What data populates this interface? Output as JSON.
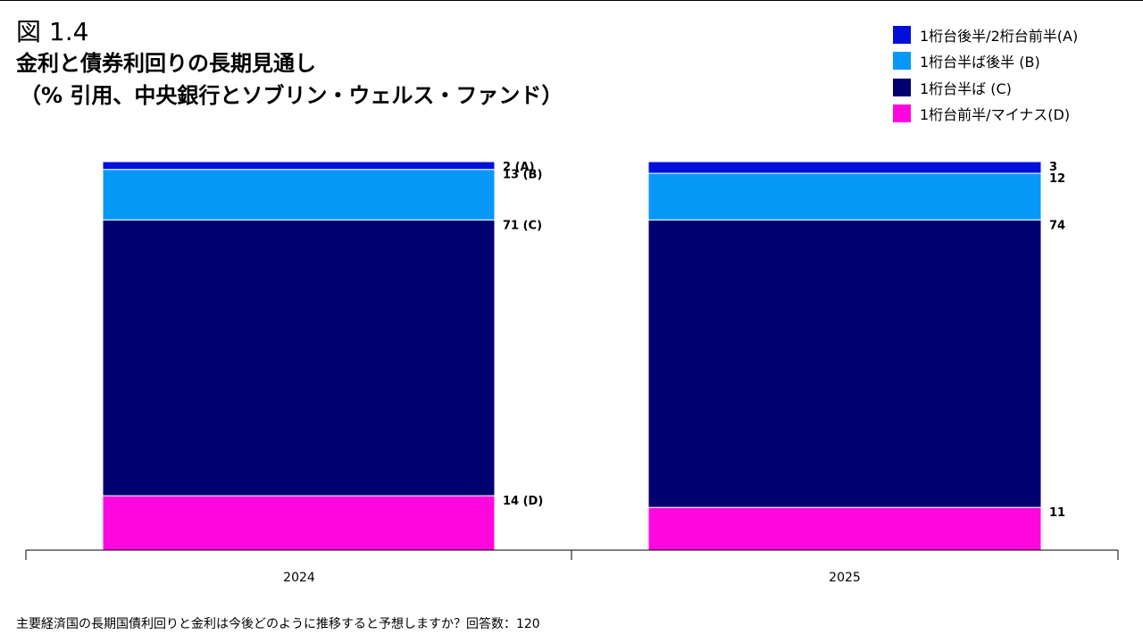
{
  "figure_label": "図 1.4",
  "title": "金利と債券利回りの長期見通し",
  "subtitle": "（% 引用、中央銀行とソブリン・ウェルス・ファンド）",
  "footnote": "主要経済国の長期国債利回りと金利は今後どのように推移すると予想しますか？回答数：120",
  "colors": {
    "A": "#0010d8",
    "B": "#0898f8",
    "C": "#000070",
    "D": "#ff08e0"
  },
  "chart_data": {
    "type": "bar",
    "stacked": true,
    "categories": [
      "2024",
      "2025"
    ],
    "ylim": [
      0,
      100
    ],
    "series": [
      {
        "key": "D",
        "name": "1桁台前半/マイナス(D)",
        "values": [
          14,
          11
        ],
        "labels": [
          "14 (D)",
          "11"
        ]
      },
      {
        "key": "C",
        "name": "1桁台半ば (C)",
        "values": [
          71,
          74
        ],
        "labels": [
          "71 (C)",
          "74"
        ]
      },
      {
        "key": "B",
        "name": "1桁台半ば後半 (B)",
        "values": [
          13,
          12
        ],
        "labels": [
          "13 (B)",
          "12"
        ]
      },
      {
        "key": "A",
        "name": "1桁台後半/2桁台前半(A)",
        "values": [
          2,
          3
        ],
        "labels": [
          "2 (A)",
          "3"
        ]
      }
    ],
    "legend_order": [
      "A",
      "B",
      "C",
      "D"
    ],
    "legend_position": "top-right",
    "grid": false,
    "xlabel": "",
    "ylabel": ""
  }
}
